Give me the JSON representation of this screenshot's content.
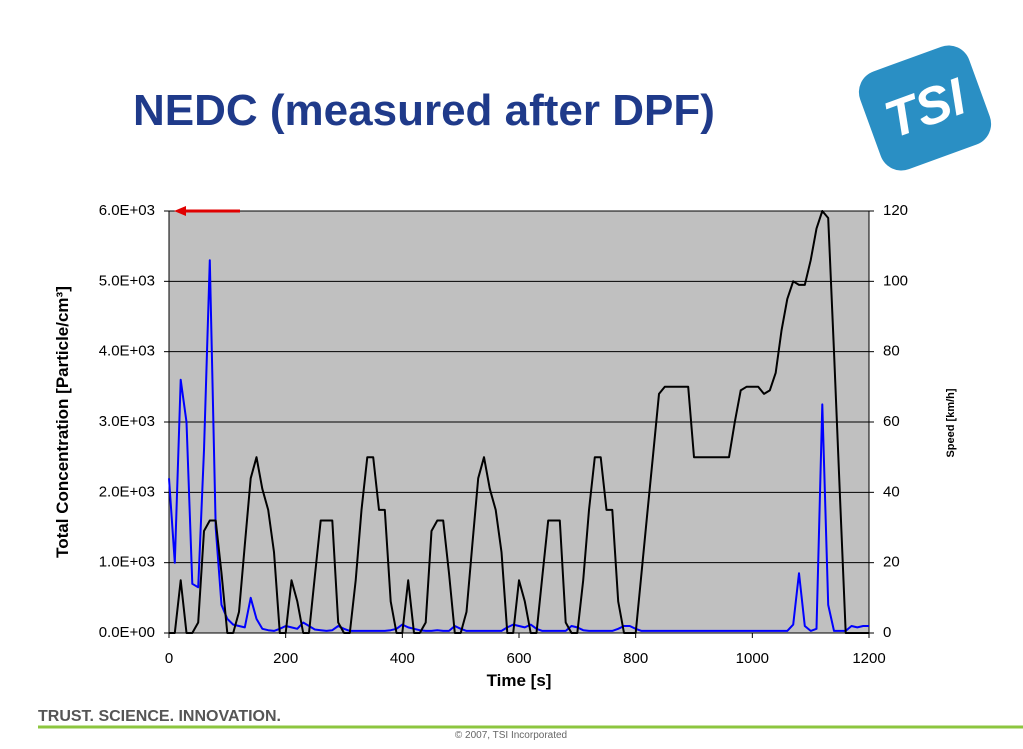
{
  "chart_data": {
    "type": "line",
    "title": "NEDC (measured after DPF)",
    "logo_text": "TSI",
    "footer_tagline": "TRUST. SCIENCE. INNOVATION.",
    "copyright": "© 2007, TSI Incorporated",
    "x_label": "Time [s]",
    "y_label": "Total Concentration [Particle/cm³]",
    "y2_label": "Speed [km/h]",
    "x": [
      0,
      10,
      20,
      30,
      40,
      50,
      60,
      70,
      80,
      90,
      100,
      110,
      120,
      130,
      140,
      150,
      160,
      170,
      180,
      190,
      200,
      210,
      220,
      230,
      240,
      250,
      260,
      270,
      280,
      290,
      300,
      310,
      320,
      330,
      340,
      350,
      360,
      370,
      380,
      390,
      400,
      410,
      420,
      430,
      440,
      450,
      460,
      470,
      480,
      490,
      500,
      510,
      520,
      530,
      540,
      550,
      560,
      570,
      580,
      590,
      600,
      610,
      620,
      630,
      640,
      650,
      660,
      670,
      680,
      690,
      700,
      710,
      720,
      730,
      740,
      750,
      760,
      770,
      780,
      790,
      800,
      810,
      820,
      830,
      840,
      850,
      860,
      870,
      880,
      890,
      900,
      910,
      920,
      930,
      940,
      950,
      960,
      970,
      980,
      990,
      1000,
      1010,
      1020,
      1030,
      1040,
      1050,
      1060,
      1070,
      1080,
      1090,
      1100,
      1110,
      1120,
      1130,
      1140,
      1150,
      1160,
      1170,
      1180,
      1190,
      1200
    ],
    "series": [
      {
        "color": "#0000ff",
        "axis": "y",
        "values": [
          2200,
          1000,
          3600,
          3000,
          700,
          650,
          2600,
          5300,
          1500,
          400,
          200,
          120,
          100,
          80,
          500,
          200,
          60,
          40,
          30,
          60,
          100,
          80,
          60,
          150,
          100,
          50,
          40,
          30,
          40,
          100,
          60,
          30,
          30,
          30,
          30,
          30,
          30,
          30,
          40,
          60,
          120,
          80,
          60,
          40,
          30,
          30,
          40,
          30,
          30,
          100,
          60,
          30,
          30,
          30,
          30,
          30,
          30,
          30,
          80,
          120,
          100,
          80,
          120,
          60,
          30,
          30,
          30,
          30,
          30,
          100,
          80,
          40,
          30,
          30,
          30,
          30,
          30,
          60,
          100,
          100,
          60,
          30,
          30,
          30,
          30,
          30,
          30,
          30,
          30,
          30,
          30,
          30,
          30,
          30,
          30,
          30,
          30,
          30,
          30,
          30,
          30,
          30,
          30,
          30,
          30,
          30,
          30,
          120,
          850,
          100,
          30,
          60,
          3250,
          400,
          30,
          30,
          30,
          100,
          80,
          100,
          100
        ]
      },
      {
        "color": "#000000",
        "axis": "y2",
        "values": [
          0,
          0,
          15,
          0,
          0,
          3,
          29,
          32,
          32,
          17,
          0,
          0,
          6,
          25,
          44,
          50,
          41,
          35,
          23,
          0,
          0,
          15,
          9,
          0,
          0,
          16,
          32,
          32,
          32,
          3,
          0,
          0,
          15,
          35,
          50,
          50,
          35,
          35,
          9,
          0,
          0,
          15,
          0,
          0,
          3,
          29,
          32,
          32,
          17,
          0,
          0,
          6,
          25,
          44,
          50,
          41,
          35,
          23,
          0,
          0,
          15,
          9,
          0,
          0,
          16,
          32,
          32,
          32,
          3,
          0,
          0,
          15,
          35,
          50,
          50,
          35,
          35,
          9,
          0,
          0,
          0,
          17,
          34,
          51,
          68,
          70,
          70,
          70,
          70,
          70,
          50,
          50,
          50,
          50,
          50,
          50,
          50,
          60,
          69,
          70,
          70,
          70,
          68,
          69,
          74,
          86,
          95,
          100,
          99,
          99,
          106,
          115,
          120,
          118,
          80,
          40,
          0,
          0,
          0,
          0,
          0
        ]
      }
    ],
    "xlim": [
      0,
      1200
    ],
    "xticks": [
      0,
      200,
      400,
      600,
      800,
      1000,
      1200
    ],
    "ylim": [
      0,
      6000
    ],
    "yticks": [
      {
        "value": 0,
        "label": "0.0E+00"
      },
      {
        "value": 1000,
        "label": "1.0E+03"
      },
      {
        "value": 2000,
        "label": "2.0E+03"
      },
      {
        "value": 3000,
        "label": "3.0E+03"
      },
      {
        "value": 4000,
        "label": "4.0E+03"
      },
      {
        "value": 5000,
        "label": "5.0E+03"
      },
      {
        "value": 6000,
        "label": "6.0E+03"
      }
    ],
    "y2lim": [
      0,
      120
    ],
    "y2ticks": [
      0,
      20,
      40,
      60,
      80,
      100,
      120
    ],
    "grid": true,
    "plot_background": "#c0c0c0"
  }
}
